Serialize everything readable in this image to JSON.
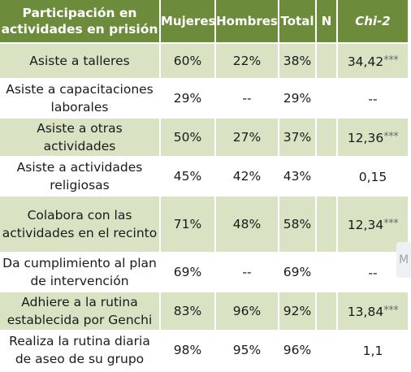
{
  "table": {
    "headers": {
      "col1": "Participación en actividades en prisión",
      "col2": "Mujeres",
      "col3": "Hombres",
      "col4": "Total",
      "col5": "N",
      "col6": "Chi-2"
    },
    "rows": [
      {
        "label": "Asiste a talleres",
        "mujeres": "60%",
        "hombres": "22%",
        "total": "38%",
        "n": "",
        "chi": "34,42",
        "sig": "***"
      },
      {
        "label": "Asiste a capacitaciones laborales",
        "mujeres": "29%",
        "hombres": "--",
        "total": "29%",
        "n": "",
        "chi": "--",
        "sig": ""
      },
      {
        "label": "Asiste a otras actividades",
        "mujeres": "50%",
        "hombres": "27%",
        "total": "37%",
        "n": "",
        "chi": "12,36",
        "sig": "***"
      },
      {
        "label": "Asiste a actividades religiosas",
        "mujeres": "45%",
        "hombres": "42%",
        "total": "43%",
        "n": "",
        "chi": "0,15",
        "sig": ""
      },
      {
        "label": "Colabora con las actividades en el recinto",
        "mujeres": "71%",
        "hombres": "48%",
        "total": "58%",
        "n": "",
        "chi": "12,34",
        "sig": "***"
      },
      {
        "label": "Da cumplimiento al plan de intervención",
        "mujeres": "69%",
        "hombres": "--",
        "total": "69%",
        "n": "",
        "chi": "--",
        "sig": ""
      },
      {
        "label": "Adhiere a la rutina establecida por Genchi",
        "mujeres": "83%",
        "hombres": "96%",
        "total": "92%",
        "n": "",
        "chi": "13,84",
        "sig": "***"
      },
      {
        "label": "Realiza la rutina diaria de aseo de su grupo",
        "mujeres": "98%",
        "hombres": "95%",
        "total": "96%",
        "n": "",
        "chi": "1,1",
        "sig": ""
      }
    ]
  },
  "edge_glyph": "M",
  "colors": {
    "header_bg": "#6c8c3b",
    "shade_bg": "#d9e2c3",
    "header_text": "#ffffff"
  }
}
